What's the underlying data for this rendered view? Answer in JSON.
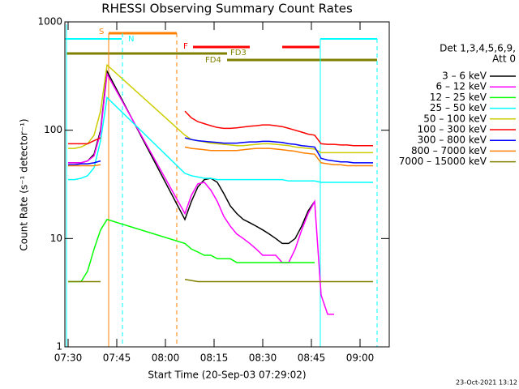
{
  "chart_data": {
    "type": "line",
    "title": "RHESSI Observing Summary Count Rates",
    "xlabel": "Start Time (20-Sep-03 07:29:02)",
    "ylabel": "Count Rate (s⁻¹ detector⁻¹)",
    "legend_title": [
      "Det 1,3,4,5,6,9,",
      "Att 0"
    ],
    "footer": "23-Oct-2021 13:12",
    "flags": [
      "S",
      "N",
      "F",
      "FD3",
      "FD4"
    ],
    "log_y": true,
    "xlim": [
      449,
      549
    ],
    "xticks": [
      {
        "value": 450,
        "label": "07:30"
      },
      {
        "value": 465,
        "label": "07:45"
      },
      {
        "value": 480,
        "label": "08:00"
      },
      {
        "value": 495,
        "label": "08:15"
      },
      {
        "value": 510,
        "label": "08:30"
      },
      {
        "value": 525,
        "label": "08:45"
      },
      {
        "value": 540,
        "label": "09:00"
      }
    ],
    "ylim": [
      1,
      1000
    ],
    "yticks": [
      1,
      10,
      100,
      1000
    ],
    "x": [
      450,
      452,
      454,
      456,
      458,
      460,
      462,
      486,
      488,
      490,
      492,
      494,
      496,
      498,
      500,
      502,
      504,
      506,
      508,
      510,
      512,
      514,
      516,
      518,
      520,
      522,
      524,
      526,
      528,
      530,
      532,
      534,
      536,
      538,
      540,
      542,
      544
    ],
    "series": [
      {
        "name": "3 – 6 keV",
        "color": "#000000",
        "values": [
          50,
          50,
          50,
          52,
          60,
          100,
          350,
          15,
          22,
          30,
          35,
          36,
          33,
          26,
          20,
          17,
          15,
          14,
          13,
          12,
          11,
          10,
          9,
          9,
          10,
          13,
          18,
          22,
          null,
          null,
          null,
          null,
          null,
          null,
          null,
          null,
          null
        ]
      },
      {
        "name": "6 – 12 keV",
        "color": "#ff00ff",
        "values": [
          50,
          50,
          50,
          52,
          58,
          95,
          330,
          17,
          25,
          32,
          33,
          28,
          22,
          16,
          13,
          11,
          10,
          9,
          8,
          7,
          7,
          7,
          6,
          6,
          8,
          12,
          17,
          22,
          3,
          2,
          2,
          null,
          null,
          null,
          null,
          null,
          null
        ]
      },
      {
        "name": "12 – 25 keV",
        "color": "#00ff00",
        "values": [
          4,
          4,
          4,
          5,
          8,
          12,
          15,
          9,
          8,
          7.5,
          7,
          7,
          6.5,
          6.5,
          6.5,
          6,
          6,
          6,
          6,
          6,
          6,
          6,
          6,
          6,
          6,
          6,
          6,
          6,
          null,
          null,
          null,
          null,
          null,
          null,
          null,
          null,
          null
        ]
      },
      {
        "name": "25 – 50 keV",
        "color": "#00ffff",
        "values": [
          35,
          35,
          36,
          38,
          45,
          80,
          200,
          40,
          38,
          37,
          36,
          36,
          35,
          35,
          35,
          35,
          35,
          35,
          35,
          35,
          35,
          35,
          35,
          34,
          34,
          34,
          34,
          34,
          33,
          33,
          33,
          33,
          33,
          33,
          33,
          33,
          33
        ]
      },
      {
        "name": "50 – 100 keV",
        "color": "#cccc00",
        "values": [
          68,
          68,
          70,
          75,
          90,
          150,
          400,
          90,
          82,
          80,
          78,
          76,
          75,
          74,
          73,
          72,
          72,
          73,
          74,
          75,
          75,
          74,
          73,
          72,
          70,
          69,
          68,
          67,
          62,
          62,
          62,
          62,
          62,
          62,
          62,
          62,
          62
        ]
      },
      {
        "name": "100 – 300 keV",
        "color": "#ff0000",
        "values": [
          75,
          75,
          75,
          75,
          80,
          85,
          null,
          150,
          130,
          120,
          115,
          110,
          106,
          104,
          104,
          105,
          107,
          109,
          110,
          112,
          112,
          110,
          108,
          104,
          100,
          96,
          92,
          90,
          75,
          74,
          74,
          73,
          73,
          72,
          72,
          72,
          72
        ]
      },
      {
        "name": "300 – 800 keV",
        "color": "#0000ff",
        "values": [
          48,
          48,
          49,
          49,
          50,
          52,
          null,
          85,
          82,
          80,
          79,
          78,
          77,
          76,
          76,
          76,
          77,
          78,
          78,
          79,
          79,
          78,
          77,
          75,
          74,
          72,
          71,
          70,
          55,
          53,
          52,
          51,
          51,
          50,
          50,
          50,
          50
        ]
      },
      {
        "name": "800 – 7000 keV",
        "color": "#ff8000",
        "values": [
          47,
          47,
          47,
          47,
          47,
          48,
          null,
          70,
          68,
          67,
          66,
          65,
          65,
          65,
          65,
          65,
          66,
          67,
          68,
          68,
          68,
          67,
          66,
          65,
          64,
          62,
          61,
          60,
          50,
          49,
          48,
          48,
          47,
          47,
          47,
          47,
          47
        ]
      },
      {
        "name": "7000 – 15000 keV",
        "color": "#808000",
        "values": [
          4,
          4,
          4,
          4,
          4,
          4,
          null,
          4.2,
          4.1,
          4,
          4,
          4,
          4,
          4,
          4,
          4,
          4,
          4,
          4,
          4,
          4,
          4,
          4,
          4,
          4,
          4,
          4,
          4,
          4,
          4,
          4,
          4,
          4,
          4,
          4,
          4,
          4
        ]
      }
    ]
  }
}
